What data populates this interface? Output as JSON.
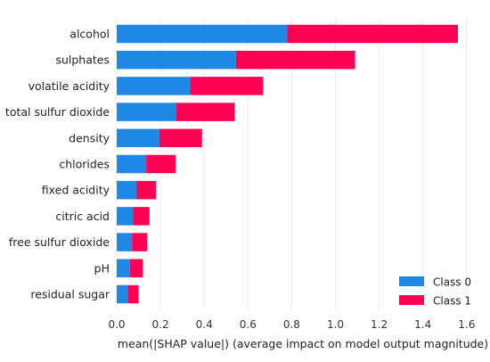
{
  "chart_data": {
    "type": "bar",
    "orientation": "horizontal",
    "stacked": true,
    "title": "",
    "xlabel": "mean(|SHAP value|) (average impact on model output magnitude)",
    "ylabel": "",
    "xlim": [
      0,
      1.6
    ],
    "xticks": [
      "0.0",
      "0.2",
      "0.4",
      "0.6",
      "0.8",
      "1.0",
      "1.2",
      "1.4",
      "1.6"
    ],
    "grid": true,
    "legend_position": "bottom-right",
    "categories": [
      "alcohol",
      "sulphates",
      "volatile acidity",
      "total sulfur dioxide",
      "density",
      "chlorides",
      "fixed acidity",
      "citric acid",
      "free sulfur dioxide",
      "pH",
      "residual sugar"
    ],
    "series": [
      {
        "name": "Class 0",
        "color": "#1e88e5",
        "values": [
          0.78,
          0.545,
          0.335,
          0.27,
          0.195,
          0.135,
          0.09,
          0.075,
          0.07,
          0.06,
          0.05
        ]
      },
      {
        "name": "Class 1",
        "color": "#ff0052",
        "values": [
          0.78,
          0.545,
          0.335,
          0.27,
          0.195,
          0.135,
          0.09,
          0.075,
          0.07,
          0.06,
          0.05
        ]
      }
    ]
  }
}
